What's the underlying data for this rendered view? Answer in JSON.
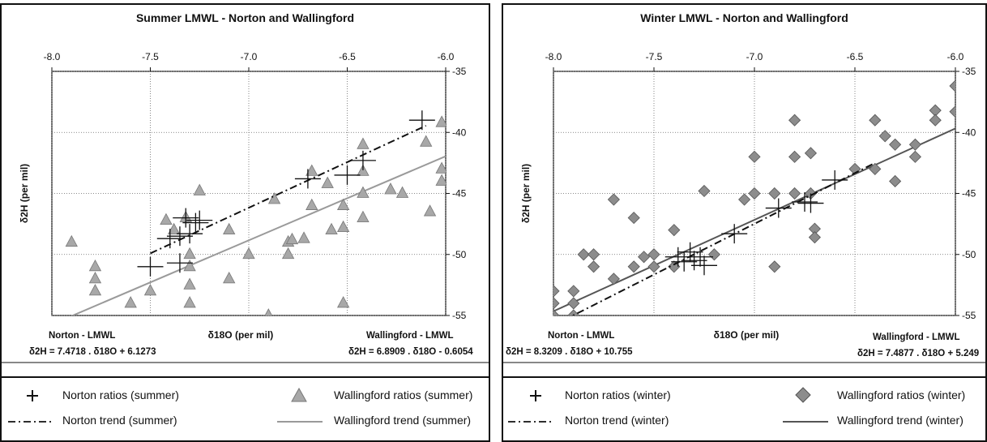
{
  "chart_data": [
    {
      "type": "scatter",
      "title": "Summer LMWL - Norton and Wallingford",
      "xlabel": "δ18O (per mil)",
      "ylabel": "δ2H (per mil)",
      "xlim": [
        -8.0,
        -6.0
      ],
      "ylim": [
        -55,
        -35
      ],
      "x_ticks": [
        "-8.0",
        "-7.5",
        "-7.0",
        "-6.5",
        "-6.0"
      ],
      "y_ticks": [
        "-35",
        "-40",
        "-45",
        "-50",
        "-55"
      ],
      "norton_label": "Norton - LMWL",
      "norton_eq": "δ2H = 7.4718 . δ18O + 6.1273",
      "wallingford_label": "Wallingford - LMWL",
      "wallingford_eq": "δ2H = 6.8909 . δ18O - 0.6054",
      "norton_line": {
        "slope": 7.4718,
        "intercept": 6.1273,
        "x_range": [
          -7.5,
          -6.1
        ]
      },
      "wallingford_line": {
        "slope": 6.8909,
        "intercept": -0.6054,
        "x_range": [
          -7.9,
          -6.0
        ]
      },
      "norton_points": [
        {
          "x": -7.5,
          "y": -51.0
        },
        {
          "x": -7.4,
          "y": -48.7
        },
        {
          "x": -7.35,
          "y": -48.5
        },
        {
          "x": -7.3,
          "y": -48.3
        },
        {
          "x": -7.32,
          "y": -47.0
        },
        {
          "x": -7.27,
          "y": -47.4
        },
        {
          "x": -7.25,
          "y": -47.2
        },
        {
          "x": -7.35,
          "y": -50.7
        },
        {
          "x": -6.7,
          "y": -43.8
        },
        {
          "x": -6.5,
          "y": -43.5
        },
        {
          "x": -6.42,
          "y": -42.3
        },
        {
          "x": -6.12,
          "y": -39.0
        }
      ],
      "wallingford_points": [
        {
          "x": -7.9,
          "y": -49.0
        },
        {
          "x": -7.78,
          "y": -51.0
        },
        {
          "x": -7.78,
          "y": -52.0
        },
        {
          "x": -7.78,
          "y": -53.0
        },
        {
          "x": -7.6,
          "y": -54.0
        },
        {
          "x": -7.5,
          "y": -53.0
        },
        {
          "x": -7.42,
          "y": -47.2
        },
        {
          "x": -7.38,
          "y": -48.0
        },
        {
          "x": -7.32,
          "y": -47.0
        },
        {
          "x": -7.3,
          "y": -50.0
        },
        {
          "x": -7.3,
          "y": -51.0
        },
        {
          "x": -7.3,
          "y": -52.5
        },
        {
          "x": -7.3,
          "y": -54.0
        },
        {
          "x": -7.25,
          "y": -44.8
        },
        {
          "x": -7.1,
          "y": -48.0
        },
        {
          "x": -7.1,
          "y": -52.0
        },
        {
          "x": -7.0,
          "y": -50.0
        },
        {
          "x": -6.9,
          "y": -55.0
        },
        {
          "x": -6.87,
          "y": -45.5
        },
        {
          "x": -6.8,
          "y": -49.0
        },
        {
          "x": -6.8,
          "y": -50.0
        },
        {
          "x": -6.78,
          "y": -48.8
        },
        {
          "x": -6.72,
          "y": -48.7
        },
        {
          "x": -6.68,
          "y": -43.2
        },
        {
          "x": -6.68,
          "y": -46.0
        },
        {
          "x": -6.6,
          "y": -44.2
        },
        {
          "x": -6.58,
          "y": -48.0
        },
        {
          "x": -6.52,
          "y": -46.0
        },
        {
          "x": -6.52,
          "y": -47.8
        },
        {
          "x": -6.52,
          "y": -54.0
        },
        {
          "x": -6.42,
          "y": -41.0
        },
        {
          "x": -6.42,
          "y": -43.2
        },
        {
          "x": -6.42,
          "y": -45.0
        },
        {
          "x": -6.42,
          "y": -47.0
        },
        {
          "x": -6.28,
          "y": -44.7
        },
        {
          "x": -6.22,
          "y": -45.0
        },
        {
          "x": -6.1,
          "y": -40.8
        },
        {
          "x": -6.08,
          "y": -46.5
        },
        {
          "x": -6.02,
          "y": -39.2
        },
        {
          "x": -6.02,
          "y": -43.0
        },
        {
          "x": -6.02,
          "y": -44.0
        }
      ],
      "legend": {
        "norton_ratios": "Norton ratios (summer)",
        "norton_trend": "Norton trend (summer)",
        "wallingford_ratios": "Wallingford ratios (summer)",
        "wallingford_trend": "Wallingford trend (summer)"
      }
    },
    {
      "type": "scatter",
      "title": "Winter LMWL - Norton and Wallingford",
      "xlabel": "δ18O (per mil)",
      "ylabel": "δ2H (per mil)",
      "xlim": [
        -8.0,
        -6.0
      ],
      "ylim": [
        -55,
        -35
      ],
      "x_ticks": [
        "-8.0",
        "-7.5",
        "-7.0",
        "-6.5",
        "-6.0"
      ],
      "y_ticks": [
        "-35",
        "-40",
        "-45",
        "-50",
        "-55"
      ],
      "norton_label": "Norton - LMWL",
      "norton_eq": "δ2H = 8.3209 . δ18O + 10.755",
      "wallingford_label": "Wallingford - LMWL",
      "wallingford_eq": "δ2H = 7.4877 . δ18O + 5.249",
      "norton_line": {
        "slope": 8.3209,
        "intercept": 10.755,
        "x_range": [
          -7.95,
          -6.4
        ]
      },
      "wallingford_line": {
        "slope": 7.4877,
        "intercept": 5.249,
        "x_range": [
          -8.0,
          -6.0
        ]
      },
      "norton_points": [
        {
          "x": -7.38,
          "y": -50.2
        },
        {
          "x": -7.35,
          "y": -50.6
        },
        {
          "x": -7.32,
          "y": -49.8
        },
        {
          "x": -7.3,
          "y": -50.5
        },
        {
          "x": -7.27,
          "y": -50.2
        },
        {
          "x": -7.25,
          "y": -50.9
        },
        {
          "x": -7.1,
          "y": -48.3
        },
        {
          "x": -6.88,
          "y": -46.2
        },
        {
          "x": -6.75,
          "y": -45.7
        },
        {
          "x": -6.72,
          "y": -45.8
        },
        {
          "x": -6.6,
          "y": -43.9
        }
      ],
      "wallingford_points": [
        {
          "x": -8.0,
          "y": -53.0
        },
        {
          "x": -8.0,
          "y": -54.0
        },
        {
          "x": -8.0,
          "y": -55.0
        },
        {
          "x": -7.9,
          "y": -53.0
        },
        {
          "x": -7.9,
          "y": -54.0
        },
        {
          "x": -7.9,
          "y": -55.0
        },
        {
          "x": -7.85,
          "y": -50.0
        },
        {
          "x": -7.8,
          "y": -50.0
        },
        {
          "x": -7.8,
          "y": -51.0
        },
        {
          "x": -7.7,
          "y": -52.0
        },
        {
          "x": -7.7,
          "y": -45.5
        },
        {
          "x": -7.6,
          "y": -47.0
        },
        {
          "x": -7.6,
          "y": -51.0
        },
        {
          "x": -7.55,
          "y": -50.2
        },
        {
          "x": -7.5,
          "y": -50.0
        },
        {
          "x": -7.5,
          "y": -51.0
        },
        {
          "x": -7.4,
          "y": -48.0
        },
        {
          "x": -7.4,
          "y": -51.0
        },
        {
          "x": -7.25,
          "y": -44.8
        },
        {
          "x": -7.2,
          "y": -50.0
        },
        {
          "x": -7.05,
          "y": -45.5
        },
        {
          "x": -7.0,
          "y": -42.0
        },
        {
          "x": -7.0,
          "y": -45.0
        },
        {
          "x": -6.9,
          "y": -45.0
        },
        {
          "x": -6.9,
          "y": -51.0
        },
        {
          "x": -6.8,
          "y": -39.0
        },
        {
          "x": -6.8,
          "y": -42.0
        },
        {
          "x": -6.8,
          "y": -45.0
        },
        {
          "x": -6.72,
          "y": -41.7
        },
        {
          "x": -6.72,
          "y": -45.0
        },
        {
          "x": -6.7,
          "y": -47.9
        },
        {
          "x": -6.7,
          "y": -48.6
        },
        {
          "x": -6.5,
          "y": -43.0
        },
        {
          "x": -6.4,
          "y": -39.0
        },
        {
          "x": -6.4,
          "y": -43.0
        },
        {
          "x": -6.35,
          "y": -40.3
        },
        {
          "x": -6.3,
          "y": -41.0
        },
        {
          "x": -6.3,
          "y": -44.0
        },
        {
          "x": -6.2,
          "y": -41.0
        },
        {
          "x": -6.2,
          "y": -42.0
        },
        {
          "x": -6.1,
          "y": -38.2
        },
        {
          "x": -6.1,
          "y": -39.0
        },
        {
          "x": -6.0,
          "y": -36.2
        },
        {
          "x": -6.0,
          "y": -38.3
        }
      ],
      "legend": {
        "norton_ratios": "Norton ratios (winter)",
        "norton_trend": "Norton trend (winter)",
        "wallingford_ratios": "Wallingford ratios (winter)",
        "wallingford_trend": "Wallingford trend (winter)"
      }
    }
  ],
  "colors": {
    "norton_marker": "#111111",
    "wallingford_triangle_fill": "#a8a8a8",
    "wallingford_diamond_fill": "#8c8c8c",
    "wallingford_trend": "#9a9a9a",
    "winter_wallingford_trend": "#555555",
    "gridline": "#666666"
  }
}
